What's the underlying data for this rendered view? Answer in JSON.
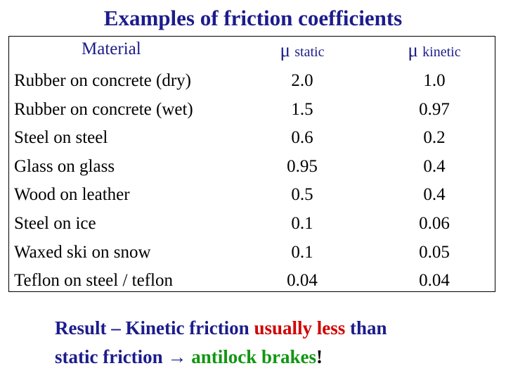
{
  "title": "Examples of friction coefficients",
  "table": {
    "headers": {
      "material": "Material",
      "static_mu": "μ",
      "static_sub": "static",
      "kinetic_mu": "μ",
      "kinetic_sub": "kinetic"
    },
    "rows": [
      {
        "material": "Rubber on concrete (dry)",
        "static": "2.0",
        "kinetic": "1.0"
      },
      {
        "material": "Rubber on concrete (wet)",
        "static": "1.5",
        "kinetic": "0.97"
      },
      {
        "material": "Steel on steel",
        "static": "0.6",
        "kinetic": "0.2"
      },
      {
        "material": "Glass on glass",
        "static": "0.95",
        "kinetic": "0.4"
      },
      {
        "material": "Wood on leather",
        "static": "0.5",
        "kinetic": "0.4"
      },
      {
        "material": "Steel on ice",
        "static": "0.1",
        "kinetic": "0.06"
      },
      {
        "material": "Waxed ski on snow",
        "static": "0.1",
        "kinetic": "0.05"
      },
      {
        "material": "Teflon on steel / teflon",
        "static": "0.04",
        "kinetic": "0.04"
      }
    ]
  },
  "result": {
    "part1": "Result – Kinetic friction ",
    "part2": "usually less",
    "part3": " than",
    "part4": "static friction → ",
    "part5": "antilock brakes",
    "part6": "!"
  },
  "colors": {
    "title": "#1c1c8c",
    "emphasis_red": "#d00000",
    "emphasis_green": "#129612"
  }
}
